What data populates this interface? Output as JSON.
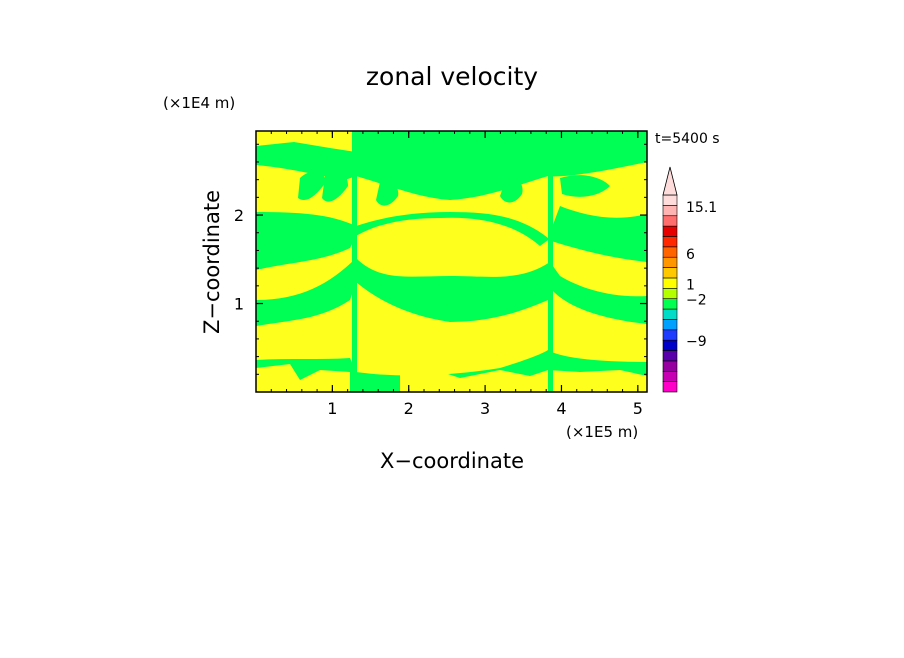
{
  "chart_data": {
    "type": "heatmap",
    "title": "zonal velocity",
    "time_label": "t=5400 s",
    "xlabel": "X−coordinate",
    "ylabel": "Z−coordinate",
    "x_scale_label": "(×1E5 m)",
    "y_scale_label": "(×1E4 m)",
    "xlim": [
      0,
      5.12
    ],
    "ylim": [
      0,
      2.95
    ],
    "x_ticks": [
      {
        "value": 1,
        "label": "1"
      },
      {
        "value": 2,
        "label": "2"
      },
      {
        "value": 3,
        "label": "3"
      },
      {
        "value": 4,
        "label": "4"
      },
      {
        "value": 5,
        "label": "5"
      }
    ],
    "y_ticks": [
      {
        "value": 1,
        "label": "1"
      },
      {
        "value": 2,
        "label": "2"
      }
    ],
    "colorbar": {
      "levels": [
        {
          "color": "#ff00c8"
        },
        {
          "color": "#c800b4"
        },
        {
          "color": "#9600a0"
        },
        {
          "color": "#5a00aa"
        },
        {
          "color": "#0000c8"
        },
        {
          "color": "#1e3cff"
        },
        {
          "color": "#00a0ff"
        },
        {
          "color": "#00dcc8"
        },
        {
          "color": "#00ff50"
        },
        {
          "color": "#b4ff00"
        },
        {
          "color": "#ffff00"
        },
        {
          "color": "#ffc800"
        },
        {
          "color": "#ff9600"
        },
        {
          "color": "#ff6400"
        },
        {
          "color": "#ff2800"
        },
        {
          "color": "#e60000"
        },
        {
          "color": "#ff6e6e"
        },
        {
          "color": "#ffb4b4"
        },
        {
          "color": "#ffdcdc"
        }
      ],
      "labels": [
        "15.1",
        "6",
        "1",
        "−2",
        "−9"
      ],
      "extend_max": true
    },
    "field_colors": {
      "positive": "#ffff1e",
      "negative": "#00ff55"
    }
  }
}
